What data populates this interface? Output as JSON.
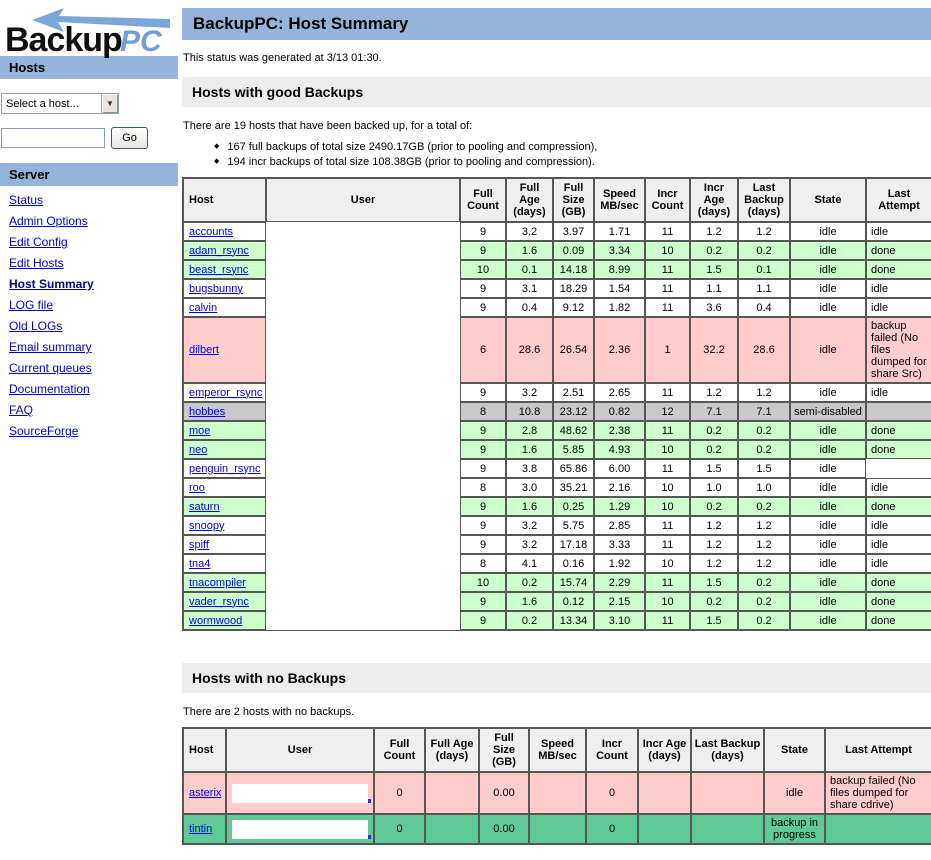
{
  "logo": {
    "backup": "Backup",
    "pc": "PC"
  },
  "colors": {
    "header_blue": "#95b4db",
    "section_gray": "#ececec",
    "good_green": "#ccffcc",
    "failed_pink": "#ffcccc",
    "disabled_gray": "#c9c9c9",
    "in_progress_green": "#5fc997",
    "link_blue": "#0000cc",
    "logo_blue": "#6f9fd8"
  },
  "sidebar": {
    "hosts_header": "Hosts",
    "select_value": "Select a host...",
    "search_value": "",
    "go_label": "Go",
    "server_header": "Server",
    "links": [
      {
        "label": "Status",
        "current": false
      },
      {
        "label": "Admin Options",
        "current": false
      },
      {
        "label": "Edit Config",
        "current": false
      },
      {
        "label": "Edit Hosts",
        "current": false
      },
      {
        "label": "Host Summary",
        "current": true
      },
      {
        "label": "LOG file",
        "current": false
      },
      {
        "label": "Old LOGs",
        "current": false
      },
      {
        "label": "Email summary",
        "current": false
      },
      {
        "label": "Current queues",
        "current": false
      },
      {
        "label": "Documentation",
        "current": false
      },
      {
        "label": "FAQ",
        "current": false
      },
      {
        "label": "SourceForge",
        "current": false
      }
    ]
  },
  "header": {
    "title": "BackupPC: Host Summary"
  },
  "status_line": "This status was generated at 3/13 01:30.",
  "columns": [
    "Host",
    "User",
    "Full Count",
    "Full Age (days)",
    "Full Size (GB)",
    "Speed MB/sec",
    "Incr Count",
    "Incr Age (days)",
    "Last Backup (days)",
    "State",
    "Last Attempt"
  ],
  "good": {
    "section_title": "Hosts with good Backups",
    "intro": "There are 19 hosts that have been backed up, for a total of:",
    "bullets": [
      "167 full backups of total size 2490.17GB (prior to pooling and compression),",
      "194 incr backups of total size 108.38GB (prior to pooling and compression)."
    ],
    "rows": [
      {
        "host": "accounts",
        "user": "",
        "full_count": "9",
        "full_age": "3.2",
        "full_size": "3.97",
        "speed": "1.71",
        "incr_count": "11",
        "incr_age": "1.2",
        "last_backup": "1.2",
        "state": "idle",
        "last_attempt": "idle",
        "status": "none"
      },
      {
        "host": "adam_rsync",
        "user": "",
        "full_count": "9",
        "full_age": "1.6",
        "full_size": "0.09",
        "speed": "3.34",
        "incr_count": "10",
        "incr_age": "0.2",
        "last_backup": "0.2",
        "state": "idle",
        "last_attempt": "done",
        "status": "good"
      },
      {
        "host": "beast_rsync",
        "user": "",
        "full_count": "10",
        "full_age": "0.1",
        "full_size": "14.18",
        "speed": "8.99",
        "incr_count": "11",
        "incr_age": "1.5",
        "last_backup": "0.1",
        "state": "idle",
        "last_attempt": "done",
        "status": "good"
      },
      {
        "host": "bugsbunny",
        "user": "",
        "full_count": "9",
        "full_age": "3.1",
        "full_size": "18.29",
        "speed": "1.54",
        "incr_count": "11",
        "incr_age": "1.1",
        "last_backup": "1.1",
        "state": "idle",
        "last_attempt": "idle",
        "status": "none"
      },
      {
        "host": "calvin",
        "user": "",
        "full_count": "9",
        "full_age": "0.4",
        "full_size": "9.12",
        "speed": "1.82",
        "incr_count": "11",
        "incr_age": "3.6",
        "last_backup": "0.4",
        "state": "idle",
        "last_attempt": "idle",
        "status": "none"
      },
      {
        "host": "dilbert",
        "user": "",
        "full_count": "6",
        "full_age": "28.6",
        "full_size": "26.54",
        "speed": "2.36",
        "incr_count": "1",
        "incr_age": "32.2",
        "last_backup": "28.6",
        "state": "idle",
        "last_attempt": "backup failed (No files dumped for share Src)",
        "status": "failed"
      },
      {
        "host": "emperor_rsync",
        "user": "",
        "full_count": "9",
        "full_age": "3.2",
        "full_size": "2.51",
        "speed": "2.65",
        "incr_count": "11",
        "incr_age": "1.2",
        "last_backup": "1.2",
        "state": "idle",
        "last_attempt": "idle",
        "status": "none"
      },
      {
        "host": "hobbes",
        "user": "",
        "full_count": "8",
        "full_age": "10.8",
        "full_size": "23.12",
        "speed": "0.82",
        "incr_count": "12",
        "incr_age": "7.1",
        "last_backup": "7.1",
        "state": "semi-disabled",
        "last_attempt": "",
        "status": "disabled"
      },
      {
        "host": "moe",
        "user": "",
        "full_count": "9",
        "full_age": "2.8",
        "full_size": "48.62",
        "speed": "2.38",
        "incr_count": "11",
        "incr_age": "0.2",
        "last_backup": "0.2",
        "state": "idle",
        "last_attempt": "done",
        "status": "good"
      },
      {
        "host": "neo",
        "user": "",
        "full_count": "9",
        "full_age": "1.6",
        "full_size": "5.85",
        "speed": "4.93",
        "incr_count": "10",
        "incr_age": "0.2",
        "last_backup": "0.2",
        "state": "idle",
        "last_attempt": "done",
        "status": "good"
      },
      {
        "host": "penguin_rsync",
        "user": "",
        "full_count": "9",
        "full_age": "3.8",
        "full_size": "65.86",
        "speed": "6.00",
        "incr_count": "11",
        "incr_age": "1.5",
        "last_backup": "1.5",
        "state": "idle",
        "last_attempt": "",
        "attempt_ghost": true,
        "status": "none"
      },
      {
        "host": "roo",
        "user": "",
        "full_count": "8",
        "full_age": "3.0",
        "full_size": "35.21",
        "speed": "2.16",
        "incr_count": "10",
        "incr_age": "1.0",
        "last_backup": "1.0",
        "state": "idle",
        "last_attempt": "idle",
        "status": "none"
      },
      {
        "host": "saturn",
        "user": "",
        "full_count": "9",
        "full_age": "1.6",
        "full_size": "0.25",
        "speed": "1.29",
        "incr_count": "10",
        "incr_age": "0.2",
        "last_backup": "0.2",
        "state": "idle",
        "last_attempt": "done",
        "status": "good"
      },
      {
        "host": "snoopy",
        "user": "",
        "full_count": "9",
        "full_age": "3.2",
        "full_size": "5.75",
        "speed": "2.85",
        "incr_count": "11",
        "incr_age": "1.2",
        "last_backup": "1.2",
        "state": "idle",
        "last_attempt": "idle",
        "status": "none"
      },
      {
        "host": "spiff",
        "user": "",
        "full_count": "9",
        "full_age": "3.2",
        "full_size": "17.18",
        "speed": "3.33",
        "incr_count": "11",
        "incr_age": "1.2",
        "last_backup": "1.2",
        "state": "idle",
        "last_attempt": "idle",
        "status": "none"
      },
      {
        "host": "tna4",
        "user": "",
        "full_count": "8",
        "full_age": "4.1",
        "full_size": "0.16",
        "speed": "1.92",
        "incr_count": "10",
        "incr_age": "1.2",
        "last_backup": "1.2",
        "state": "idle",
        "last_attempt": "idle",
        "status": "none"
      },
      {
        "host": "tnacompiler",
        "user": "",
        "full_count": "10",
        "full_age": "0.2",
        "full_size": "15.74",
        "speed": "2.29",
        "incr_count": "11",
        "incr_age": "1.5",
        "last_backup": "0.2",
        "state": "idle",
        "last_attempt": "done",
        "status": "good"
      },
      {
        "host": "vader_rsync",
        "user": "",
        "full_count": "9",
        "full_age": "1.6",
        "full_size": "0.12",
        "speed": "2.15",
        "incr_count": "10",
        "incr_age": "0.2",
        "last_backup": "0.2",
        "state": "idle",
        "last_attempt": "done",
        "status": "good"
      },
      {
        "host": "wormwood",
        "user": "",
        "full_count": "9",
        "full_age": "0.2",
        "full_size": "13.34",
        "speed": "3.10",
        "incr_count": "11",
        "incr_age": "1.5",
        "last_backup": "0.2",
        "state": "idle",
        "last_attempt": "done",
        "status": "good"
      }
    ]
  },
  "none": {
    "section_title": "Hosts with no Backups",
    "intro": "There are 2 hosts with no backups.",
    "rows": [
      {
        "host": "asterix",
        "user": "",
        "full_count": "0",
        "full_age": "",
        "full_size": "0.00",
        "speed": "",
        "incr_count": "0",
        "incr_age": "",
        "last_backup": "",
        "state": "idle",
        "last_attempt": "backup failed (No files dumped for share cdrive)",
        "status": "failed"
      },
      {
        "host": "tintin",
        "user": "",
        "full_count": "0",
        "full_age": "",
        "full_size": "0.00",
        "speed": "",
        "incr_count": "0",
        "incr_age": "",
        "last_backup": "",
        "state": "backup in progress",
        "last_attempt": "",
        "status": "in_progress"
      }
    ]
  }
}
